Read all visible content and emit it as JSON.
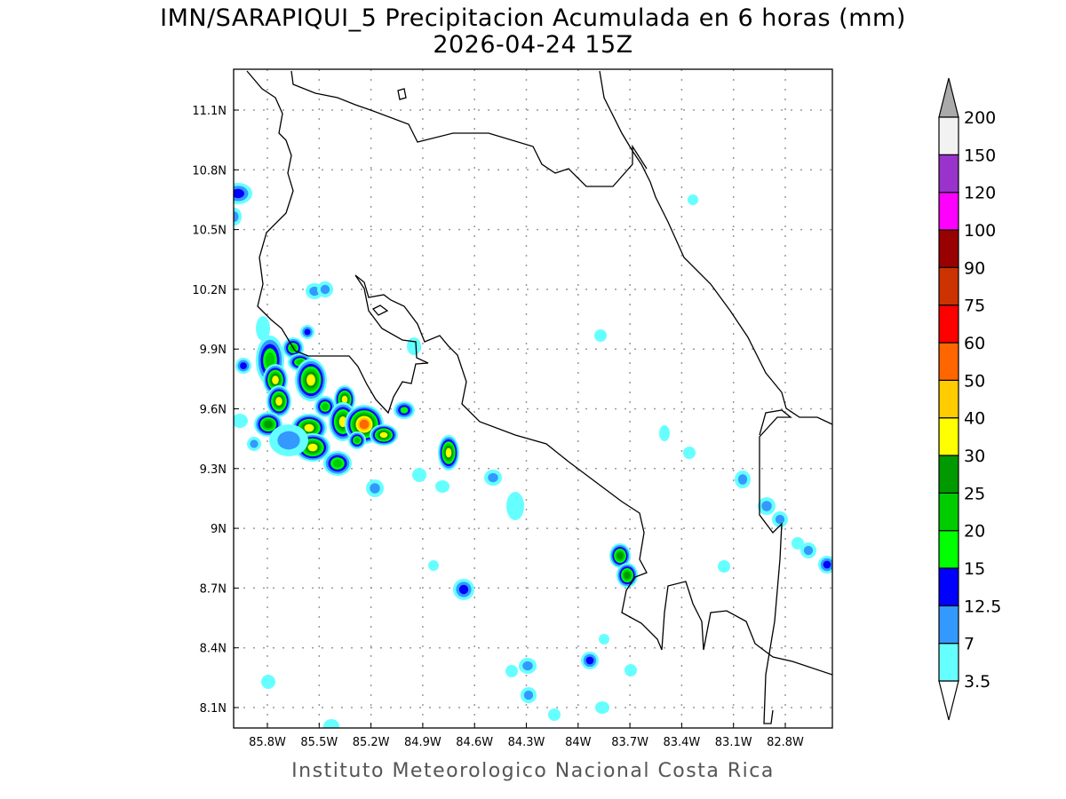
{
  "title": "IMN/SARAPIQUI_5 Precipitacion Acumulada en 6 horas (mm)",
  "subtitle": "2026-04-24 15Z",
  "footer": "Instituto Meteorologico Nacional Costa Rica",
  "map": {
    "lon_range": [
      -86.0,
      -82.53
    ],
    "lat_range": [
      8.0,
      11.3
    ],
    "lat_ticks": [
      "11.1N",
      "10.8N",
      "10.5N",
      "10.2N",
      "9.9N",
      "9.6N",
      "9.3N",
      "9N",
      "8.7N",
      "8.4N",
      "8.1N"
    ],
    "lon_ticks": [
      "85.8W",
      "85.5W",
      "85.2W",
      "84.9W",
      "84.6W",
      "84.3W",
      "84W",
      "83.7W",
      "83.4W",
      "83.1W",
      "82.8W"
    ]
  },
  "colorbar": {
    "labels": [
      "3.5",
      "7",
      "12.5",
      "15",
      "20",
      "25",
      "30",
      "40",
      "50",
      "60",
      "75",
      "90",
      "100",
      "120",
      "150",
      "200"
    ],
    "colors": [
      "#66ffff",
      "#3399ff",
      "#0000ff",
      "#00ff00",
      "#00cc00",
      "#009900",
      "#ffff00",
      "#ffcc00",
      "#ff6600",
      "#ff0000",
      "#cc3300",
      "#990000",
      "#ff00ff",
      "#9933cc",
      "#f2f2f2"
    ],
    "over_color": "#aaaaaa",
    "under_color": "#ffffff"
  }
}
